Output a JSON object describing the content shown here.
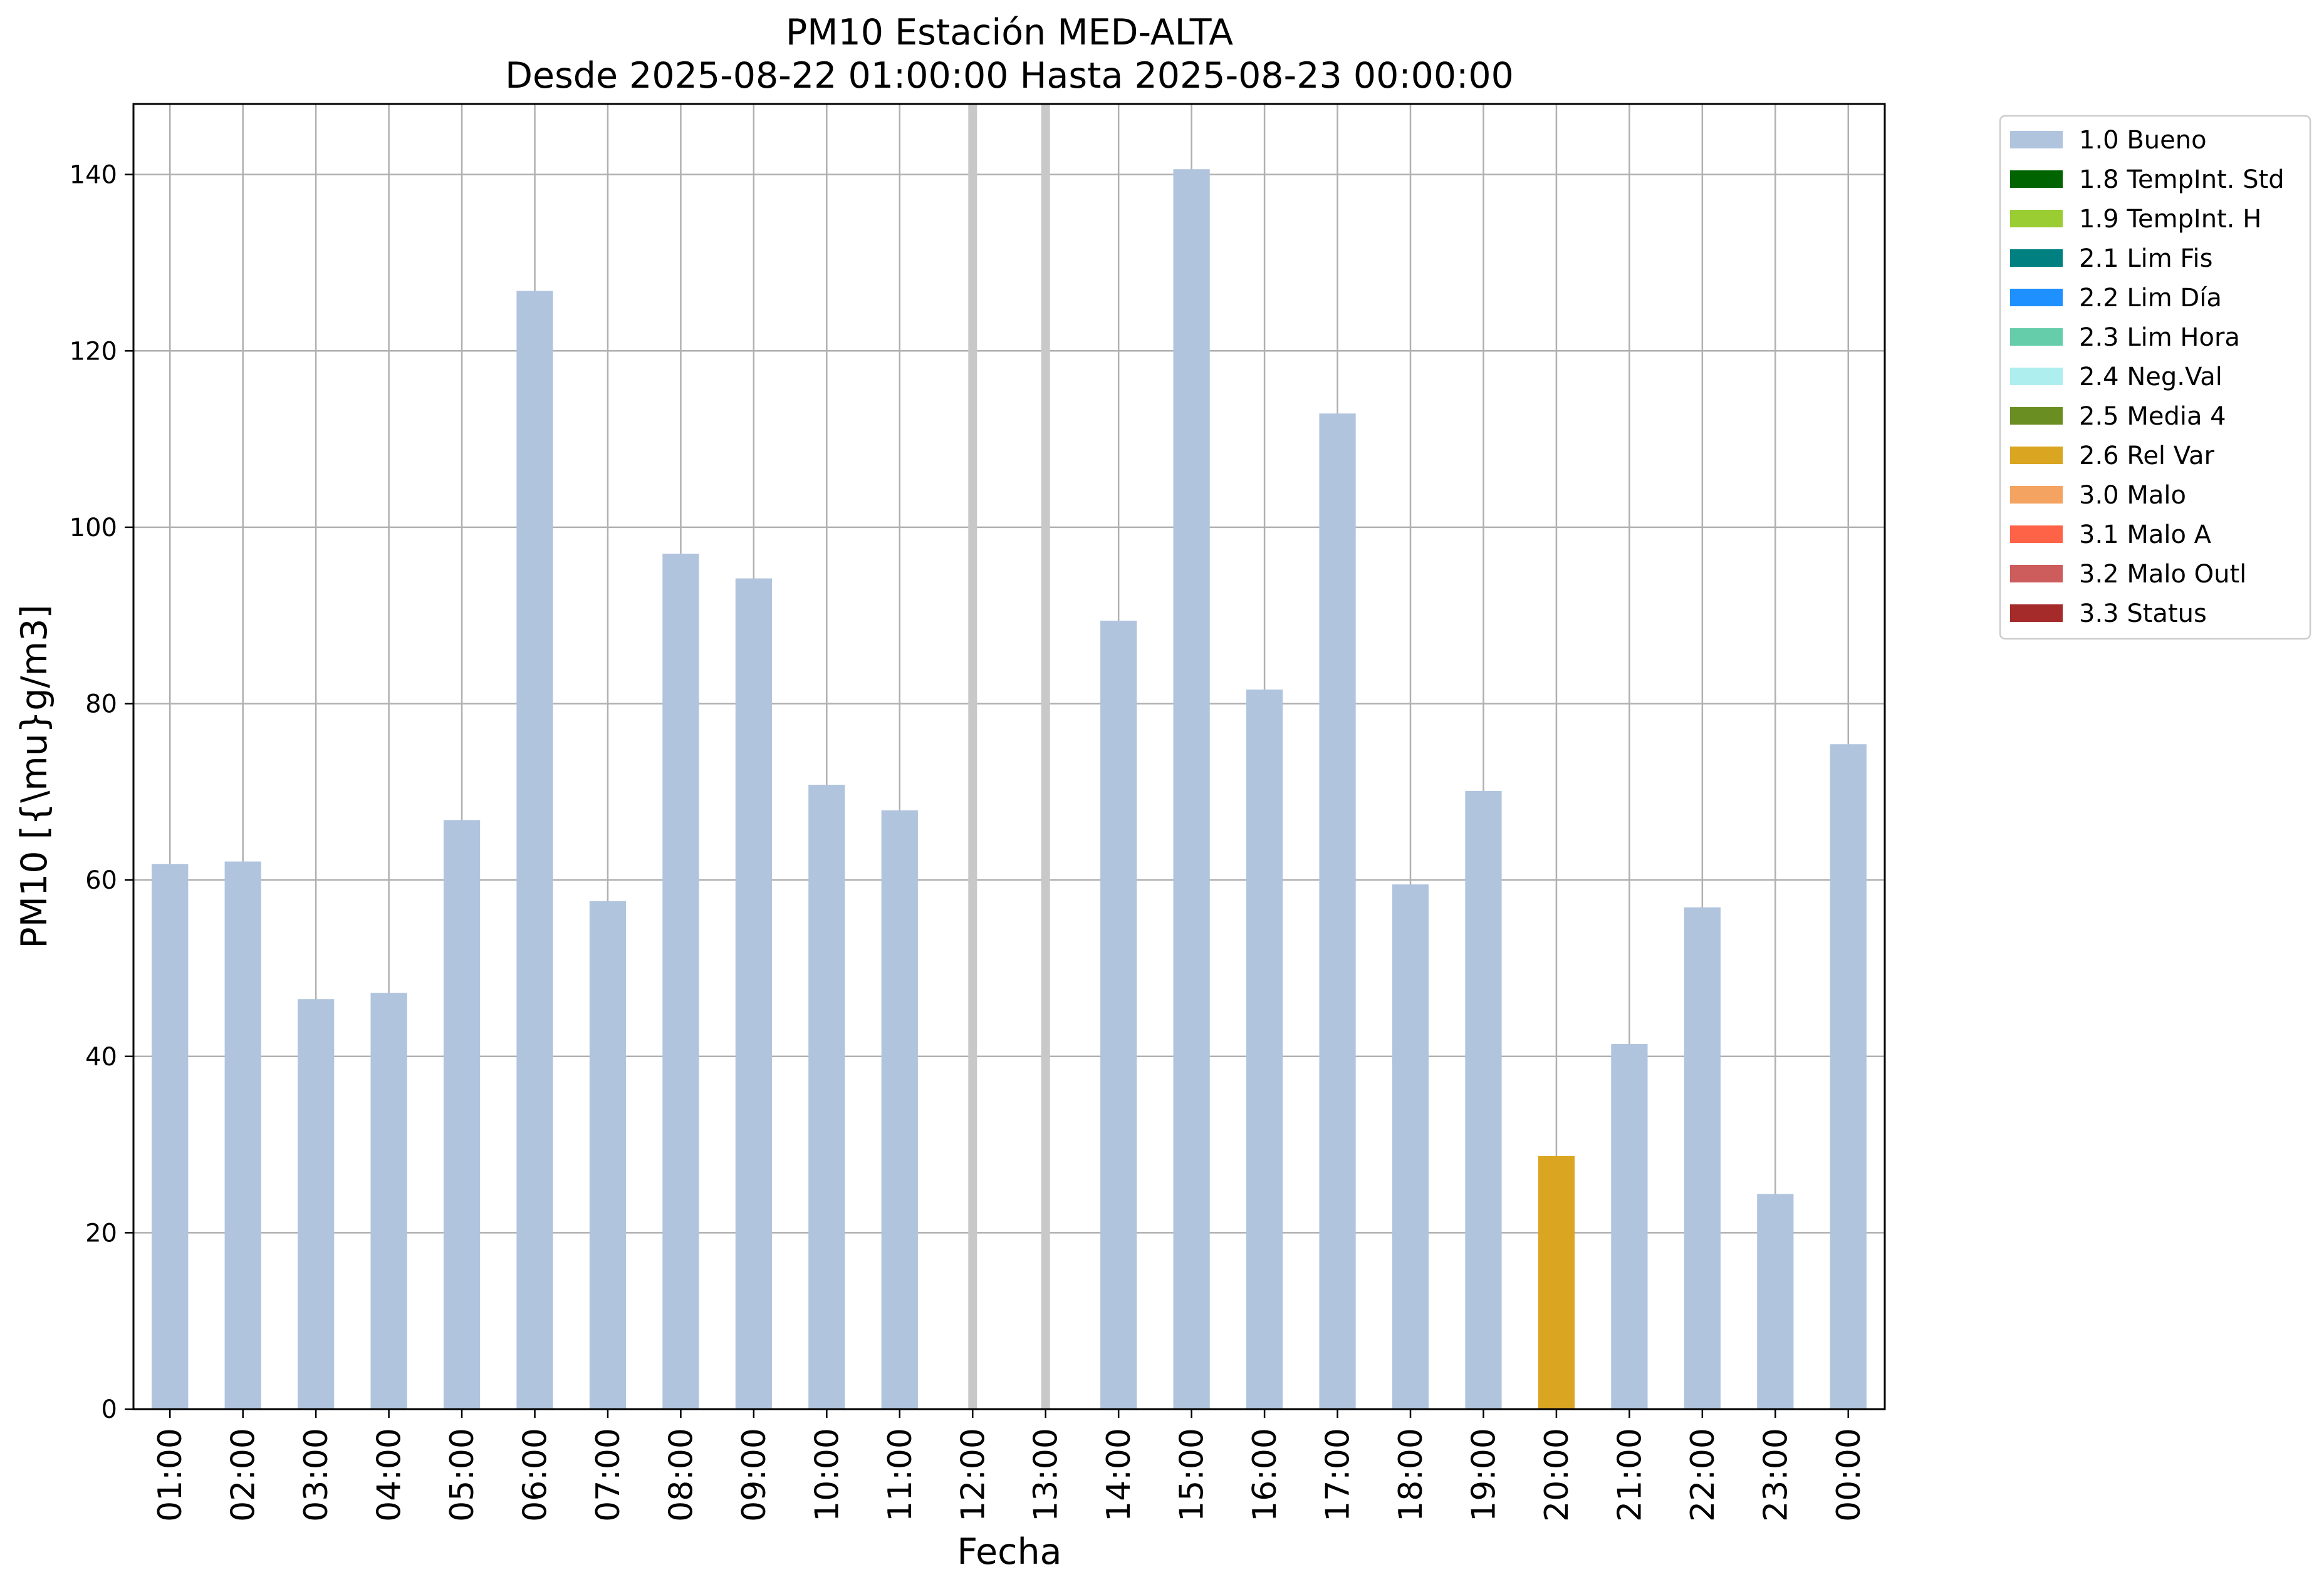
{
  "chart_data": {
    "type": "bar",
    "title": "PM10 Estación MED-ALTA",
    "subtitle": "Desde 2025-08-22 01:00:00 Hasta 2025-08-23 00:00:00",
    "xlabel": "Fecha",
    "ylabel": "PM10 [{\\mu}g/m3]",
    "ylim": [
      0,
      148
    ],
    "yticks": [
      0,
      20,
      40,
      60,
      80,
      100,
      120,
      140
    ],
    "grid": true,
    "legend_position": "outside-top-right",
    "categories": [
      "01:00",
      "02:00",
      "03:00",
      "04:00",
      "05:00",
      "06:00",
      "07:00",
      "08:00",
      "09:00",
      "10:00",
      "11:00",
      "12:00",
      "13:00",
      "14:00",
      "15:00",
      "16:00",
      "17:00",
      "18:00",
      "19:00",
      "20:00",
      "21:00",
      "22:00",
      "23:00",
      "00:00"
    ],
    "values": [
      61.8,
      62.1,
      46.5,
      47.2,
      66.8,
      126.8,
      57.6,
      97.0,
      94.2,
      70.8,
      67.9,
      null,
      null,
      89.4,
      140.6,
      81.6,
      112.9,
      59.5,
      70.1,
      28.7,
      41.4,
      56.9,
      24.4,
      75.4
    ],
    "flags": [
      "1.0 Bueno",
      "1.0 Bueno",
      "1.0 Bueno",
      "1.0 Bueno",
      "1.0 Bueno",
      "1.0 Bueno",
      "1.0 Bueno",
      "1.0 Bueno",
      "1.0 Bueno",
      "1.0 Bueno",
      "1.0 Bueno",
      null,
      null,
      "1.0 Bueno",
      "1.0 Bueno",
      "1.0 Bueno",
      "1.0 Bueno",
      "1.0 Bueno",
      "1.0 Bueno",
      "2.6 Rel Var",
      "1.0 Bueno",
      "1.0 Bueno",
      "1.0 Bueno",
      "1.0 Bueno"
    ],
    "missing_marker_color": "#c8c8c8",
    "legend": [
      {
        "label": "1.0 Bueno",
        "color": "#b0c4de"
      },
      {
        "label": "1.8 TempInt. Std",
        "color": "#006400"
      },
      {
        "label": "1.9 TempInt. H",
        "color": "#9acd32"
      },
      {
        "label": "2.1 Lim Fis",
        "color": "#008080"
      },
      {
        "label": "2.2 Lim Día",
        "color": "#1e90ff"
      },
      {
        "label": "2.3 Lim Hora",
        "color": "#66cdaa"
      },
      {
        "label": "2.4 Neg.Val",
        "color": "#afeeee"
      },
      {
        "label": "2.5 Media 4",
        "color": "#6b8e23"
      },
      {
        "label": "2.6 Rel Var",
        "color": "#daa520"
      },
      {
        "label": "3.0 Malo",
        "color": "#f4a460"
      },
      {
        "label": "3.1 Malo A",
        "color": "#ff6347"
      },
      {
        "label": "3.2 Malo Outl",
        "color": "#cd5c5c"
      },
      {
        "label": "3.3 Status",
        "color": "#a52a2a"
      }
    ]
  }
}
